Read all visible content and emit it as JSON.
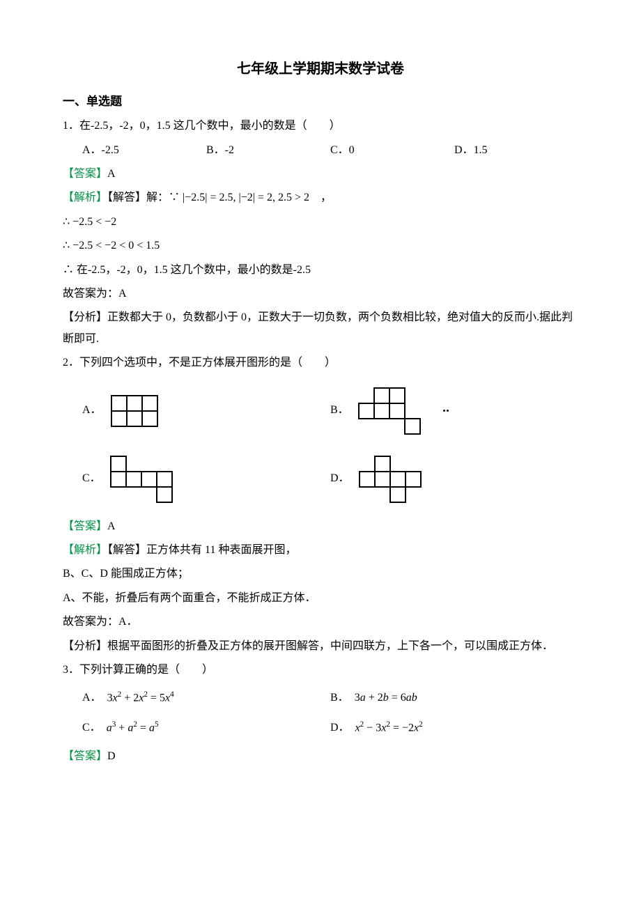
{
  "title": "七年级上学期期末数学试卷",
  "section1_heading": "一、单选题",
  "q1": {
    "stem": "1．在-2.5，-2，0，1.5 这几个数中，最小的数是（　　）",
    "opts": {
      "A": "A．-2.5",
      "B": "B．-2",
      "C": "C．0",
      "D": "D．1.5"
    },
    "ans_label": "【答案】",
    "ans": "A",
    "exp_label1": "【解析】",
    "exp_label2": "【解答】",
    "exp1_prefix": "解：∵ ",
    "exp1_core": "|−2.5| = 2.5, |−2| = 2, 2.5 > 2",
    "exp1_suffix": "　，",
    "exp2": "∴ −2.5 < −2",
    "exp3": "∴ −2.5 < −2 < 0 < 1.5",
    "exp4": "∴  在-2.5，-2，0，1.5 这几个数中，最小的数是-2.5",
    "exp5": "故答案为：A",
    "ana_label": "【分析】",
    "ana": "正数都大于 0，负数都小于 0，正数大于一切负数，两个负数相比较，绝对值大的反而小.据此判断即可."
  },
  "q2": {
    "stem": "2．下列四个选项中，不是正方体展开图形的是（　　）",
    "opt_labels": {
      "A": "A．",
      "B": "B．",
      "C": "C．",
      "D": "D．"
    },
    "nets": {
      "cell": 22,
      "A": [
        [
          0,
          0
        ],
        [
          1,
          0
        ],
        [
          2,
          0
        ],
        [
          0,
          1
        ],
        [
          1,
          1
        ],
        [
          2,
          1
        ]
      ],
      "B": [
        [
          1,
          0
        ],
        [
          2,
          0
        ],
        [
          0,
          1
        ],
        [
          1,
          1
        ],
        [
          2,
          1
        ],
        [
          3,
          2
        ]
      ],
      "C": [
        [
          0,
          0
        ],
        [
          0,
          1
        ],
        [
          1,
          1
        ],
        [
          2,
          1
        ],
        [
          3,
          1
        ],
        [
          3,
          2
        ]
      ],
      "D": [
        [
          0,
          1
        ],
        [
          1,
          1
        ],
        [
          2,
          1
        ],
        [
          3,
          1
        ],
        [
          1,
          0
        ],
        [
          2,
          2
        ]
      ]
    },
    "ans_label": "【答案】",
    "ans": "A",
    "exp_label1": "【解析】",
    "exp_label2": "【解答】",
    "exp1": "正方体共有 11 种表面展开图，",
    "exp2": "B、C、D 能围成正方体；",
    "exp3": "A、不能，折叠后有两个面重合，不能折成正方体．",
    "exp4": "故答案为：A．",
    "ana_label": "【分析】",
    "ana": "根据平面图形的折叠及正方体的展开图解答，中间四联方，上下各一个，可以围成正方体．"
  },
  "q3": {
    "stem": "3．下列计算正确的是（　　）",
    "opts": {
      "A": {
        "label": "A．",
        "expr_html": "3<i>x</i><sup>2</sup> + 2<i>x</i><sup>2</sup> = 5<i>x</i><sup>4</sup>"
      },
      "B": {
        "label": "B．",
        "expr_html": "3<i>a</i> + 2<i>b</i> = 6<i>ab</i>"
      },
      "C": {
        "label": "C．",
        "expr_html": "<i>a</i><sup>3</sup> + <i>a</i><sup>2</sup> = <i>a</i><sup>5</sup>"
      },
      "D": {
        "label": "D．",
        "expr_html": "<i>x</i><sup>2</sup> − 3<i>x</i><sup>2</sup> = −2<i>x</i><sup>2</sup>"
      }
    },
    "ans_label": "【答案】",
    "ans": "D"
  },
  "colors": {
    "text": "#000000",
    "green": "#009245",
    "background": "#ffffff"
  }
}
